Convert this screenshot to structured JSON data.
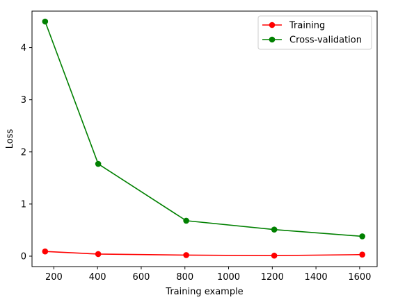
{
  "chart_data": {
    "type": "line",
    "title": "",
    "xlabel": "Training example",
    "ylabel": "Loss",
    "xlim": [
      100,
      1680
    ],
    "ylim": [
      -0.2,
      4.7
    ],
    "xticks": [
      200,
      400,
      600,
      800,
      1000,
      1200,
      1400,
      1600
    ],
    "yticks": [
      0,
      1,
      2,
      3,
      4
    ],
    "grid": false,
    "legend_position": "top-right",
    "x": [
      160,
      403,
      806,
      1209,
      1612
    ],
    "series": [
      {
        "name": "Training",
        "color": "#ff0000",
        "marker": "circle",
        "values": [
          0.09,
          0.04,
          0.02,
          0.01,
          0.03
        ]
      },
      {
        "name": "Cross-validation",
        "color": "#008000",
        "marker": "circle",
        "values": [
          4.5,
          1.77,
          0.68,
          0.51,
          0.38
        ]
      }
    ]
  }
}
